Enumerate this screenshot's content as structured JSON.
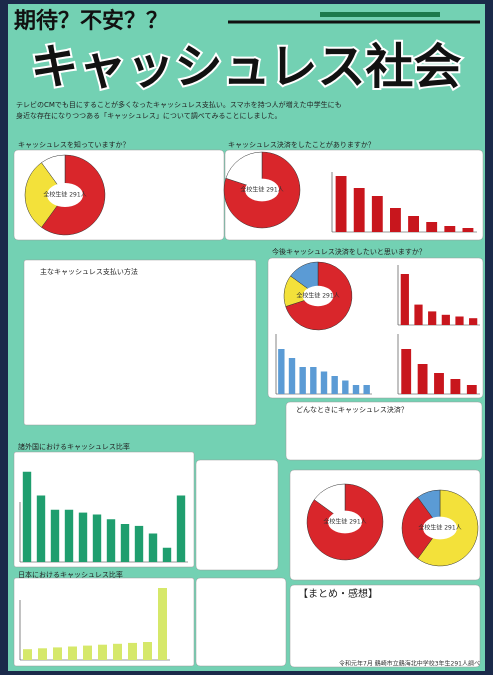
{
  "header": {
    "kicker": "期待？不安？？",
    "title": "キャッシュレス社会",
    "intro_1": "テレビのCMでも目にすることが多くなったキャッシュレス支払い。スマホを持つ人が増えた中学生にも",
    "intro_2": "身近な存在になりつつある「キャッシュレス」について調べてみることにしました。"
  },
  "headings": [
    "キャッシュレスを知っていますか？",
    "キャッシュレス決済をしたことがありますか？",
    "今後キャッシュレス決済をしたいと思いますか？",
    "主なキャッシュレス支払い方法",
    "どんなときにキャッシュレス決済？",
    "諸外国におけるキャッシュレス比率",
    "日本におけるキャッシュレス比率",
    "【まとめ・感想】"
  ],
  "pie_center": "全校生徒 291人",
  "pies": [
    {
      "values": [
        60,
        30,
        10
      ],
      "colors": [
        "#d9262b",
        "#f3e13a",
        "#ffffff"
      ]
    },
    {
      "values": [
        80,
        20
      ],
      "colors": [
        "#d9262b",
        "#ffffff"
      ]
    },
    {
      "values": [
        70,
        15,
        15
      ],
      "colors": [
        "#d9262b",
        "#f3e13a",
        "#5b9bd5"
      ]
    },
    {
      "values": [
        85,
        15
      ],
      "colors": [
        "#d9262b",
        "#ffffff"
      ]
    },
    {
      "values": [
        60,
        30,
        10
      ],
      "colors": [
        "#f3e13a",
        "#d9262b",
        "#5b9bd5"
      ]
    }
  ],
  "bars": [
    {
      "values": [
        28,
        22,
        18,
        12,
        8,
        5,
        3,
        2
      ],
      "color": "#c8161d"
    },
    {
      "values": [
        30,
        12,
        8,
        6,
        5,
        4
      ],
      "color": "#c8161d"
    },
    {
      "values": [
        10,
        8,
        6,
        6,
        5,
        4,
        3,
        2,
        2
      ],
      "color": "#5b9bd5"
    },
    {
      "values": [
        30,
        20,
        14,
        10,
        6
      ],
      "color": "#c8161d"
    },
    {
      "values": [
        95,
        70,
        55,
        55,
        52,
        50,
        45,
        40,
        38,
        30,
        15,
        70
      ],
      "color": "#1f9e6e"
    },
    {
      "values": [
        12,
        13,
        14,
        15,
        16,
        17,
        18,
        19,
        20,
        80
      ],
      "color": "#d6e86a"
    }
  ],
  "footer": "令和元年7月 鶴崎市立鶴海北中学校3年生291人調べ"
}
